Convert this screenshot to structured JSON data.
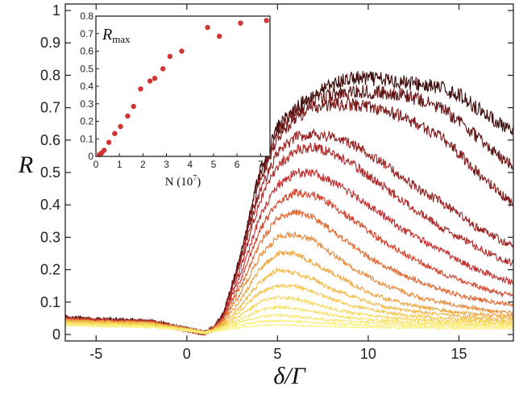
{
  "chart_data": [
    {
      "type": "line",
      "title": "",
      "xlabel": "δ/Γ",
      "ylabel": "R",
      "xlim": [
        -6.7,
        18
      ],
      "ylim": [
        -0.02,
        1.02
      ],
      "xticks": [
        -5,
        0,
        5,
        10,
        15
      ],
      "xtick_labels": [
        "-5",
        "0",
        "5",
        "10",
        "15"
      ],
      "yticks": [
        0,
        0.1,
        0.2,
        0.3,
        0.4,
        0.5,
        0.6,
        0.7,
        0.8,
        0.9,
        1
      ],
      "ytick_labels": [
        "0",
        "0.1",
        "0.2",
        "0.3",
        "0.4",
        "0.5",
        "0.6",
        "0.7",
        "0.8",
        "0.9",
        "1"
      ],
      "grid": false,
      "legend": "none",
      "noisy_traces": true,
      "x": [
        -6.7,
        -5,
        -2,
        0,
        1,
        1.5,
        2,
        3,
        4,
        5,
        6,
        7,
        8,
        9,
        10,
        11,
        12,
        13,
        14,
        15,
        16,
        17,
        18
      ],
      "series": [
        {
          "color": "#3d0c0c",
          "values": [
            0.05,
            0.045,
            0.04,
            0.015,
            0.005,
            0.02,
            0.06,
            0.25,
            0.5,
            0.64,
            0.7,
            0.74,
            0.77,
            0.79,
            0.79,
            0.785,
            0.78,
            0.77,
            0.76,
            0.74,
            0.7,
            0.66,
            0.62
          ]
        },
        {
          "color": "#611414",
          "values": [
            0.05,
            0.045,
            0.04,
            0.015,
            0.005,
            0.02,
            0.06,
            0.25,
            0.49,
            0.63,
            0.69,
            0.72,
            0.74,
            0.75,
            0.75,
            0.745,
            0.74,
            0.72,
            0.7,
            0.66,
            0.61,
            0.56,
            0.52
          ]
        },
        {
          "color": "#7d1a1a",
          "values": [
            0.048,
            0.043,
            0.038,
            0.015,
            0.005,
            0.02,
            0.06,
            0.24,
            0.47,
            0.61,
            0.67,
            0.7,
            0.71,
            0.71,
            0.705,
            0.69,
            0.67,
            0.64,
            0.61,
            0.56,
            0.5,
            0.45,
            0.4
          ]
        },
        {
          "color": "#972222",
          "values": [
            0.048,
            0.043,
            0.038,
            0.015,
            0.005,
            0.02,
            0.06,
            0.23,
            0.44,
            0.56,
            0.61,
            0.62,
            0.61,
            0.59,
            0.56,
            0.52,
            0.48,
            0.44,
            0.41,
            0.37,
            0.33,
            0.3,
            0.27
          ]
        },
        {
          "color": "#ad2a2a",
          "values": [
            0.046,
            0.042,
            0.037,
            0.015,
            0.005,
            0.02,
            0.05,
            0.21,
            0.41,
            0.52,
            0.57,
            0.58,
            0.56,
            0.53,
            0.49,
            0.45,
            0.41,
            0.37,
            0.33,
            0.3,
            0.27,
            0.24,
            0.22
          ]
        },
        {
          "color": "#c23232",
          "values": [
            0.046,
            0.042,
            0.037,
            0.015,
            0.005,
            0.02,
            0.05,
            0.19,
            0.36,
            0.46,
            0.5,
            0.5,
            0.47,
            0.44,
            0.4,
            0.36,
            0.32,
            0.29,
            0.26,
            0.23,
            0.2,
            0.18,
            0.16
          ]
        },
        {
          "color": "#d14a33",
          "values": [
            0.045,
            0.04,
            0.036,
            0.015,
            0.005,
            0.018,
            0.05,
            0.17,
            0.32,
            0.41,
            0.44,
            0.43,
            0.4,
            0.36,
            0.32,
            0.28,
            0.25,
            0.22,
            0.19,
            0.17,
            0.15,
            0.13,
            0.12
          ]
        },
        {
          "color": "#de6a35",
          "values": [
            0.045,
            0.04,
            0.036,
            0.015,
            0.005,
            0.018,
            0.045,
            0.15,
            0.28,
            0.36,
            0.38,
            0.36,
            0.32,
            0.28,
            0.24,
            0.21,
            0.18,
            0.16,
            0.14,
            0.12,
            0.11,
            0.1,
            0.09
          ]
        },
        {
          "color": "#e78a3a",
          "values": [
            0.043,
            0.039,
            0.035,
            0.015,
            0.005,
            0.017,
            0.04,
            0.13,
            0.24,
            0.3,
            0.31,
            0.29,
            0.25,
            0.21,
            0.18,
            0.15,
            0.13,
            0.11,
            0.1,
            0.09,
            0.08,
            0.07,
            0.065
          ]
        },
        {
          "color": "#eea540",
          "values": [
            0.042,
            0.038,
            0.034,
            0.015,
            0.005,
            0.016,
            0.035,
            0.11,
            0.2,
            0.25,
            0.25,
            0.22,
            0.19,
            0.16,
            0.13,
            0.11,
            0.095,
            0.085,
            0.075,
            0.068,
            0.062,
            0.058,
            0.055
          ]
        },
        {
          "color": "#f2b948",
          "values": [
            0.04,
            0.037,
            0.033,
            0.015,
            0.005,
            0.015,
            0.03,
            0.09,
            0.16,
            0.2,
            0.19,
            0.17,
            0.14,
            0.12,
            0.1,
            0.085,
            0.075,
            0.068,
            0.062,
            0.056,
            0.052,
            0.05,
            0.048
          ]
        },
        {
          "color": "#f4c850",
          "values": [
            0.038,
            0.035,
            0.032,
            0.015,
            0.005,
            0.014,
            0.028,
            0.075,
            0.13,
            0.15,
            0.15,
            0.13,
            0.11,
            0.09,
            0.078,
            0.068,
            0.06,
            0.055,
            0.05,
            0.047,
            0.045,
            0.043,
            0.042
          ]
        },
        {
          "color": "#f6d658",
          "values": [
            0.036,
            0.033,
            0.03,
            0.015,
            0.005,
            0.013,
            0.025,
            0.06,
            0.1,
            0.115,
            0.11,
            0.095,
            0.08,
            0.068,
            0.06,
            0.053,
            0.048,
            0.045,
            0.042,
            0.04,
            0.038,
            0.037,
            0.036
          ]
        },
        {
          "color": "#f7e160",
          "values": [
            0.034,
            0.031,
            0.028,
            0.015,
            0.005,
            0.012,
            0.022,
            0.048,
            0.075,
            0.085,
            0.08,
            0.07,
            0.06,
            0.052,
            0.046,
            0.042,
            0.039,
            0.037,
            0.035,
            0.034,
            0.033,
            0.032,
            0.031
          ]
        },
        {
          "color": "#f8e86a",
          "values": [
            0.032,
            0.029,
            0.026,
            0.014,
            0.005,
            0.011,
            0.02,
            0.038,
            0.055,
            0.06,
            0.056,
            0.05,
            0.045,
            0.04,
            0.037,
            0.034,
            0.032,
            0.031,
            0.03,
            0.029,
            0.028,
            0.028,
            0.027
          ]
        },
        {
          "color": "#f9ee78",
          "values": [
            0.03,
            0.027,
            0.024,
            0.013,
            0.005,
            0.01,
            0.017,
            0.03,
            0.04,
            0.042,
            0.04,
            0.037,
            0.034,
            0.031,
            0.029,
            0.027,
            0.026,
            0.025,
            0.024,
            0.024,
            0.023,
            0.023,
            0.022
          ]
        },
        {
          "color": "#faf288",
          "values": [
            0.028,
            0.025,
            0.022,
            0.012,
            0.005,
            0.009,
            0.014,
            0.022,
            0.028,
            0.029,
            0.028,
            0.026,
            0.024,
            0.023,
            0.022,
            0.021,
            0.02,
            0.02,
            0.019,
            0.019,
            0.018,
            0.018,
            0.018
          ]
        }
      ]
    },
    {
      "type": "scatter",
      "title": "R_max",
      "title_main": "R",
      "title_sub": "max",
      "xlabel": "N (10^7)",
      "xlabel_main": "N (10",
      "xlabel_sup": "7",
      "xlabel_end": ")",
      "ylabel": "",
      "xlim": [
        0,
        7.4
      ],
      "ylim": [
        0,
        0.8
      ],
      "xticks": [
        0,
        1,
        2,
        3,
        4,
        5,
        6,
        7
      ],
      "xtick_labels": [
        "0",
        "1",
        "2",
        "3",
        "4",
        "5",
        "6",
        "7"
      ],
      "yticks": [
        0,
        0.1,
        0.2,
        0.3,
        0.4,
        0.5,
        0.6,
        0.7,
        0.8
      ],
      "ytick_labels": [
        "0",
        "0.1",
        "0.2",
        "0.3",
        "0.4",
        "0.5",
        "0.6",
        "0.7",
        "0.8"
      ],
      "grid": false,
      "marker_color": "#d03434",
      "x": [
        0.15,
        0.25,
        0.35,
        0.55,
        0.8,
        1.05,
        1.35,
        1.6,
        1.9,
        2.3,
        2.5,
        2.85,
        3.15,
        3.65,
        4.75,
        5.25,
        6.15,
        7.25
      ],
      "y": [
        0.01,
        0.02,
        0.035,
        0.08,
        0.13,
        0.17,
        0.23,
        0.285,
        0.385,
        0.43,
        0.445,
        0.5,
        0.57,
        0.6,
        0.735,
        0.685,
        0.76,
        0.775
      ]
    }
  ]
}
